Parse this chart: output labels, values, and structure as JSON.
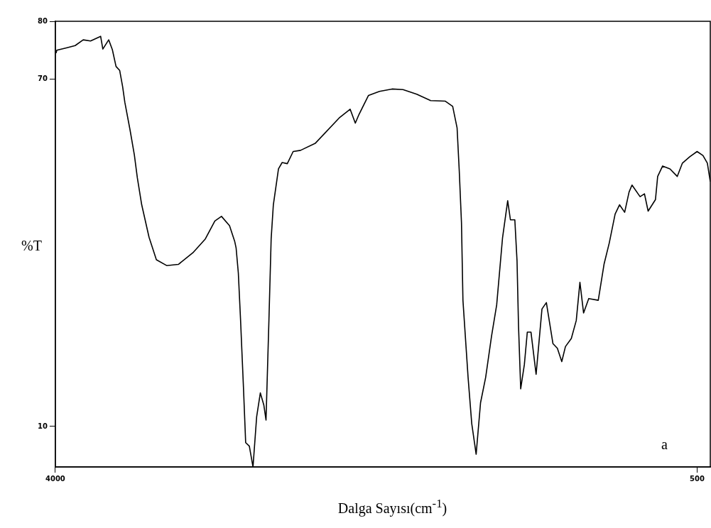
{
  "chart_data": {
    "type": "line",
    "xlabel": "Dalga Sayısı(cm$^{-1}$)",
    "ylabel": "%T",
    "annotations": [
      "a"
    ],
    "xlim": [
      4000,
      428
    ],
    "xticks": [
      4000,
      500
    ],
    "ylim": [
      3,
      80
    ],
    "yticks": [
      10,
      70,
      80
    ],
    "grid": false,
    "legend": false,
    "marker": "none",
    "line_style": "solid",
    "series": [
      {
        "color": "#000000",
        "x": [
          3996,
          3992,
          3940,
          3892,
          3848,
          3808,
          3753,
          3741,
          3709,
          3689,
          3669,
          3649,
          3633,
          3621,
          3593,
          3569,
          3553,
          3529,
          3489,
          3449,
          3393,
          3329,
          3250,
          3182,
          3130,
          3094,
          3050,
          3022,
          3014,
          3002,
          2990,
          2974,
          2962,
          2942,
          2922,
          2902,
          2882,
          2863,
          2851,
          2835,
          2823,
          2811,
          2783,
          2763,
          2735,
          2703,
          2663,
          2583,
          2452,
          2392,
          2364,
          2344,
          2292,
          2232,
          2164,
          2104,
          2029,
          1953,
          1873,
          1833,
          1809,
          1797,
          1785,
          1777,
          1749,
          1729,
          1705,
          1681,
          1653,
          1621,
          1593,
          1561,
          1533,
          1518,
          1494,
          1482,
          1474,
          1462,
          1442,
          1426,
          1406,
          1378,
          1346,
          1322,
          1286,
          1262,
          1238,
          1218,
          1186,
          1159,
          1139,
          1119,
          1091,
          1039,
          1007,
          979,
          947,
          923,
          895,
          871,
          855,
          811,
          787,
          767,
          727,
          715,
          688,
          648,
          608,
          580,
          540,
          500,
          468,
          444,
          428
        ],
        "values": [
          74.5,
          75.0,
          75.4,
          75.8,
          76.8,
          76.6,
          77.4,
          75.2,
          76.8,
          75.1,
          72.2,
          71.5,
          68.7,
          66.0,
          61.3,
          56.9,
          53.0,
          48.3,
          42.7,
          38.8,
          37.8,
          38.0,
          40.0,
          42.4,
          45.5,
          46.3,
          44.7,
          42.0,
          40.8,
          36.5,
          28.5,
          16.7,
          7.2,
          6.6,
          3.0,
          11.7,
          15.8,
          13.7,
          11.1,
          28.5,
          42.4,
          48.3,
          54.5,
          55.6,
          55.4,
          57.5,
          57.7,
          58.9,
          63.3,
          64.8,
          62.4,
          63.9,
          67.2,
          67.9,
          68.3,
          68.2,
          67.4,
          66.3,
          66.2,
          65.3,
          61.6,
          54.1,
          45.2,
          31.8,
          18.5,
          10.5,
          5.2,
          14.1,
          18.5,
          25.6,
          31.0,
          42.6,
          49.0,
          45.7,
          45.7,
          38.6,
          27.5,
          16.5,
          20.7,
          26.3,
          26.3,
          19.0,
          30.3,
          31.4,
          24.3,
          23.5,
          21.2,
          23.8,
          25.2,
          28.3,
          34.9,
          29.6,
          32.1,
          31.8,
          38.1,
          41.7,
          46.7,
          48.3,
          47.0,
          50.5,
          51.7,
          49.7,
          50.2,
          47.2,
          49.2,
          53.2,
          55.0,
          54.5,
          53.2,
          55.5,
          56.6,
          57.5,
          56.8,
          55.5,
          52.3
        ]
      }
    ]
  }
}
